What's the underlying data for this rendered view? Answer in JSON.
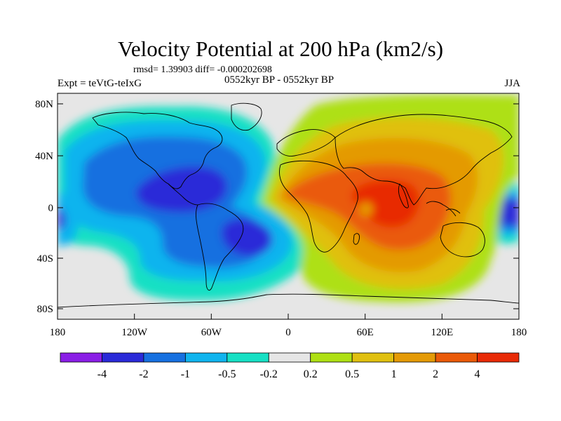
{
  "title": "Velocity Potential at 200 hPa (km2/s)",
  "stats": "rmsd= 1.39903 diff= -0.000202698",
  "experiment": "Expt = teVtG-teIxG",
  "period": "0552kyr BP - 0552kyr BP",
  "season": "JJA",
  "lat_labels": [
    "80N",
    "40N",
    "0",
    "40S",
    "80S"
  ],
  "lon_labels": [
    "180",
    "120W",
    "60W",
    "0",
    "60E",
    "120E",
    "180"
  ],
  "colorbar": {
    "colors": [
      "#8a1ee6",
      "#2a2ad8",
      "#1670e0",
      "#10b4ee",
      "#16e0c4",
      "#e6e6e6",
      "#aee014",
      "#e0c010",
      "#e49a06",
      "#ea5a08",
      "#e82a06"
    ],
    "labels": [
      "-4",
      "-2",
      "-1",
      "-0.5",
      "-0.2",
      "0.2",
      "0.5",
      "1",
      "2",
      "4"
    ]
  }
}
